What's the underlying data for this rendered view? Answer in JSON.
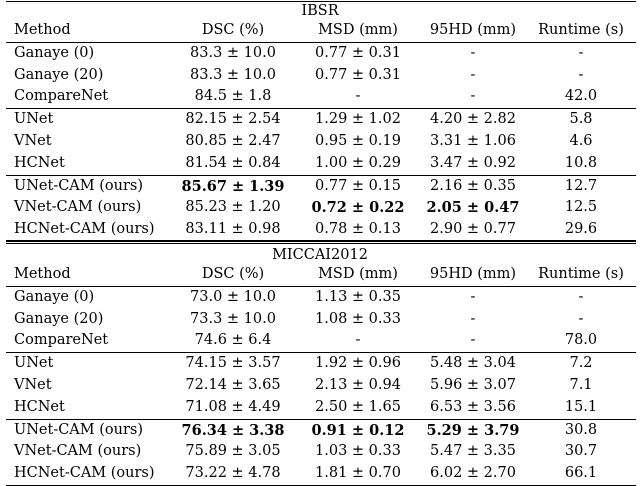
{
  "tables": [
    {
      "title": "IBSR",
      "headers": [
        "Method",
        "DSC (%)",
        "MSD (mm)",
        "95HD (mm)",
        "Runtime (s)"
      ],
      "groups": [
        [
          {
            "cells": [
              "Ganaye (0)",
              "83.3 ± 10.0",
              "0.77 ± 0.31",
              "-",
              "-"
            ],
            "bold": [
              false,
              false,
              false,
              false,
              false
            ]
          },
          {
            "cells": [
              "Ganaye (20)",
              "83.3 ± 10.0",
              "0.77 ± 0.31",
              "-",
              "-"
            ],
            "bold": [
              false,
              false,
              false,
              false,
              false
            ]
          },
          {
            "cells": [
              "CompareNet",
              "84.5 ± 1.8",
              "-",
              "-",
              "42.0"
            ],
            "bold": [
              false,
              false,
              false,
              false,
              false
            ]
          }
        ],
        [
          {
            "cells": [
              "UNet",
              "82.15 ± 2.54",
              "1.29 ± 1.02",
              "4.20 ± 2.82",
              "5.8"
            ],
            "bold": [
              false,
              false,
              false,
              false,
              false
            ]
          },
          {
            "cells": [
              "VNet",
              "80.85 ± 2.47",
              "0.95 ± 0.19",
              "3.31 ± 1.06",
              "4.6"
            ],
            "bold": [
              false,
              false,
              false,
              false,
              false
            ]
          },
          {
            "cells": [
              "HCNet",
              "81.54 ± 0.84",
              "1.00 ± 0.29",
              "3.47 ± 0.92",
              "10.8"
            ],
            "bold": [
              false,
              false,
              false,
              false,
              false
            ]
          }
        ],
        [
          {
            "cells": [
              "UNet-CAM (ours)",
              "85.67 ± 1.39",
              "0.77 ± 0.15",
              "2.16 ± 0.35",
              "12.7"
            ],
            "bold": [
              false,
              true,
              false,
              false,
              false
            ]
          },
          {
            "cells": [
              "VNet-CAM (ours)",
              "85.23 ± 1.20",
              "0.72 ± 0.22",
              "2.05 ± 0.47",
              "12.5"
            ],
            "bold": [
              false,
              false,
              true,
              true,
              false
            ]
          },
          {
            "cells": [
              "HCNet-CAM (ours)",
              "83.11 ± 0.98",
              "0.78 ± 0.13",
              "2.90 ± 0.77",
              "29.6"
            ],
            "bold": [
              false,
              false,
              false,
              false,
              false
            ]
          }
        ]
      ]
    },
    {
      "title": "MICCAI2012",
      "headers": [
        "Method",
        "DSC (%)",
        "MSD (mm)",
        "95HD (mm)",
        "Runtime (s)"
      ],
      "groups": [
        [
          {
            "cells": [
              "Ganaye (0)",
              "73.0 ± 10.0",
              "1.13 ± 0.35",
              "-",
              "-"
            ],
            "bold": [
              false,
              false,
              false,
              false,
              false
            ]
          },
          {
            "cells": [
              "Ganaye (20)",
              "73.3 ± 10.0",
              "1.08 ± 0.33",
              "-",
              "-"
            ],
            "bold": [
              false,
              false,
              false,
              false,
              false
            ]
          },
          {
            "cells": [
              "CompareNet",
              "74.6 ± 6.4",
              "-",
              "-",
              "78.0"
            ],
            "bold": [
              false,
              false,
              false,
              false,
              false
            ]
          }
        ],
        [
          {
            "cells": [
              "UNet",
              "74.15 ± 3.57",
              "1.92 ± 0.96",
              "5.48 ± 3.04",
              "7.2"
            ],
            "bold": [
              false,
              false,
              false,
              false,
              false
            ]
          },
          {
            "cells": [
              "VNet",
              "72.14 ± 3.65",
              "2.13 ± 0.94",
              "5.96 ± 3.07",
              "7.1"
            ],
            "bold": [
              false,
              false,
              false,
              false,
              false
            ]
          },
          {
            "cells": [
              "HCNet",
              "71.08 ± 4.49",
              "2.50 ± 1.65",
              "6.53 ± 3.56",
              "15.1"
            ],
            "bold": [
              false,
              false,
              false,
              false,
              false
            ]
          }
        ],
        [
          {
            "cells": [
              "UNet-CAM (ours)",
              "76.34 ± 3.38",
              "0.91 ± 0.12",
              "5.29 ± 3.79",
              "30.8"
            ],
            "bold": [
              false,
              true,
              true,
              true,
              false
            ]
          },
          {
            "cells": [
              "VNet-CAM (ours)",
              "75.89 ± 3.05",
              "1.03 ± 0.33",
              "5.47 ± 3.35",
              "30.7"
            ],
            "bold": [
              false,
              false,
              false,
              false,
              false
            ]
          },
          {
            "cells": [
              "HCNet-CAM (ours)",
              "73.22 ± 4.78",
              "1.81 ± 0.70",
              "6.02 ± 2.70",
              "66.1"
            ],
            "bold": [
              false,
              false,
              false,
              false,
              false
            ]
          }
        ]
      ]
    }
  ]
}
